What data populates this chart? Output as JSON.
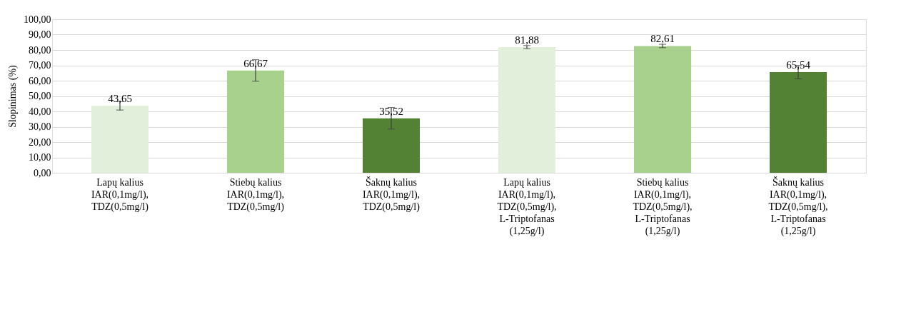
{
  "chart_data": {
    "type": "bar",
    "ylabel": "Slopinimas (%)",
    "categories": [
      "Lapų kalius\nIAR(0,1mg/l),\nTDZ(0,5mg/l)",
      "Stiebų kalius\nIAR(0,1mg/l),\nTDZ(0,5mg/l)",
      "Šaknų kalius\nIAR(0,1mg/l),\nTDZ(0,5mg/l)",
      "Lapų kalius\nIAR(0,1mg/l),\nTDZ(0,5mg/l),\nL-Triptofanas\n(1,25g/l)",
      "Stiebų kalius\nIAR(0,1mg/l),\nTDZ(0,5mg/l),\nL-Triptofanas\n(1,25g/l)",
      "Šaknų kalius\nIAR(0,1mg/l),\nTDZ(0,5mg/l),\nL-Triptofanas\n(1,25g/l)"
    ],
    "values": [
      43.65,
      66.67,
      35.52,
      81.88,
      82.61,
      65.54
    ],
    "value_labels": [
      "43,65",
      "66,67",
      "35,52",
      "81,88",
      "82,61",
      "65,54"
    ],
    "errors": [
      2.8,
      7.0,
      7.0,
      1.0,
      1.1,
      4.3
    ],
    "colors": [
      "#e2efda",
      "#a9d18e",
      "#548235",
      "#e2efda",
      "#a9d18e",
      "#548235"
    ],
    "ylim": [
      0,
      100
    ],
    "yticks": [
      {
        "value": 0,
        "label": "0,00"
      },
      {
        "value": 10,
        "label": "10,00"
      },
      {
        "value": 20,
        "label": "20,00"
      },
      {
        "value": 30,
        "label": "30,00"
      },
      {
        "value": 40,
        "label": "40,00"
      },
      {
        "value": 50,
        "label": "50,00"
      },
      {
        "value": 60,
        "label": "60,00"
      },
      {
        "value": 70,
        "label": "70,00"
      },
      {
        "value": 80,
        "label": "80,00"
      },
      {
        "value": 90,
        "label": "90,00"
      },
      {
        "value": 100,
        "label": "100,00"
      }
    ],
    "grid": "y"
  }
}
